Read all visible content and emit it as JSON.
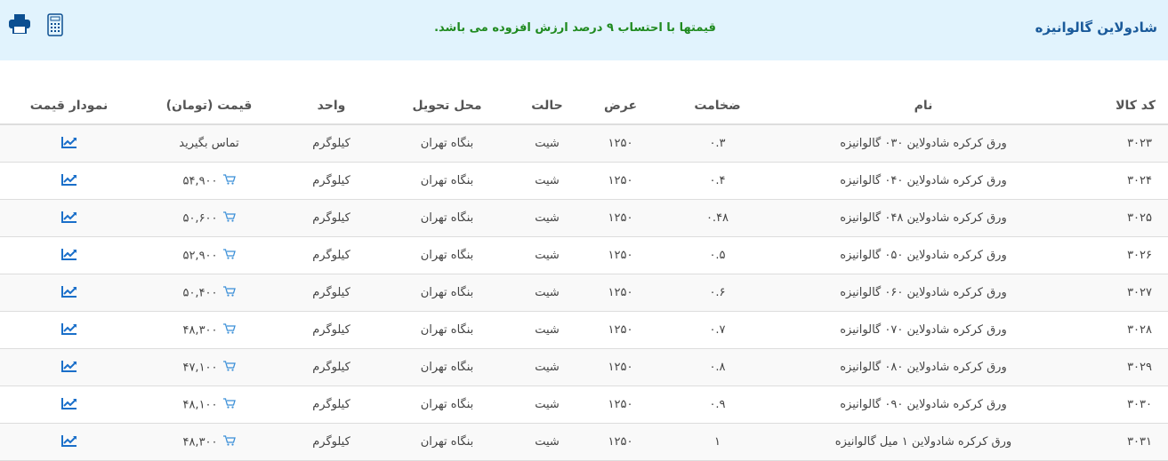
{
  "header": {
    "title": "شادولاین گالوانیزه",
    "notice": "قیمتها با احتساب ۹ درصد ارزش افزوده می باشد."
  },
  "columns": [
    "کد کالا",
    "نام",
    "ضخامت",
    "عرض",
    "حالت",
    "محل تحویل",
    "واحد",
    "قیمت (تومان)",
    "نمودار قیمت"
  ],
  "rows": [
    {
      "code": "۳۰۲۳",
      "name": "ورق کرکره شادولاین ۰۳۰ گالوانیزه",
      "thickness": "۰.۳",
      "width": "۱۲۵۰",
      "state": "شیت",
      "place": "بنگاه تهران",
      "unit": "کیلوگرم",
      "price": "تماس بگیرید",
      "cart": false
    },
    {
      "code": "۳۰۲۴",
      "name": "ورق کرکره شادولاین ۰۴۰ گالوانیزه",
      "thickness": "۰.۴",
      "width": "۱۲۵۰",
      "state": "شیت",
      "place": "بنگاه تهران",
      "unit": "کیلوگرم",
      "price": "۵۴,۹۰۰",
      "cart": true
    },
    {
      "code": "۳۰۲۵",
      "name": "ورق کرکره شادولاین ۰۴۸ گالوانیزه",
      "thickness": "۰.۴۸",
      "width": "۱۲۵۰",
      "state": "شیت",
      "place": "بنگاه تهران",
      "unit": "کیلوگرم",
      "price": "۵۰,۶۰۰",
      "cart": true
    },
    {
      "code": "۳۰۲۶",
      "name": "ورق کرکره شادولاین ۰۵۰ گالوانیزه",
      "thickness": "۰.۵",
      "width": "۱۲۵۰",
      "state": "شیت",
      "place": "بنگاه تهران",
      "unit": "کیلوگرم",
      "price": "۵۲,۹۰۰",
      "cart": true
    },
    {
      "code": "۳۰۲۷",
      "name": "ورق کرکره شادولاین ۰۶۰ گالوانیزه",
      "thickness": "۰.۶",
      "width": "۱۲۵۰",
      "state": "شیت",
      "place": "بنگاه تهران",
      "unit": "کیلوگرم",
      "price": "۵۰,۴۰۰",
      "cart": true
    },
    {
      "code": "۳۰۲۸",
      "name": "ورق کرکره شادولاین ۰۷۰ گالوانیزه",
      "thickness": "۰.۷",
      "width": "۱۲۵۰",
      "state": "شیت",
      "place": "بنگاه تهران",
      "unit": "کیلوگرم",
      "price": "۴۸,۳۰۰",
      "cart": true
    },
    {
      "code": "۳۰۲۹",
      "name": "ورق کرکره شادولاین ۰۸۰ گالوانیزه",
      "thickness": "۰.۸",
      "width": "۱۲۵۰",
      "state": "شیت",
      "place": "بنگاه تهران",
      "unit": "کیلوگرم",
      "price": "۴۷,۱۰۰",
      "cart": true
    },
    {
      "code": "۳۰۳۰",
      "name": "ورق کرکره شادولاین ۰۹۰ گالوانیزه",
      "thickness": "۰.۹",
      "width": "۱۲۵۰",
      "state": "شیت",
      "place": "بنگاه تهران",
      "unit": "کیلوگرم",
      "price": "۴۸,۱۰۰",
      "cart": true
    },
    {
      "code": "۳۰۳۱",
      "name": "ورق کرکره شادولاین ۱ میل گالوانیزه",
      "thickness": "۱",
      "width": "۱۲۵۰",
      "state": "شیت",
      "place": "بنگاه تهران",
      "unit": "کیلوگرم",
      "price": "۴۸,۳۰۰",
      "cart": true
    }
  ],
  "colors": {
    "header_bg": "#e1f3fd",
    "title": "#1a5a9a",
    "notice": "#1f8a1f",
    "icon": "#1a6fc9"
  }
}
